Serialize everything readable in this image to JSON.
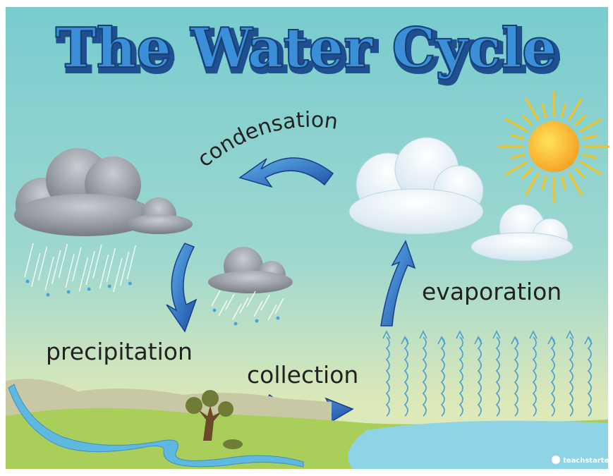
{
  "title": "The Water Cycle",
  "labels": {
    "condensation": "condensation",
    "precipitation": "precipitation",
    "collection": "collection",
    "evaporation": "evaporation"
  },
  "brand": "teachstarter"
}
